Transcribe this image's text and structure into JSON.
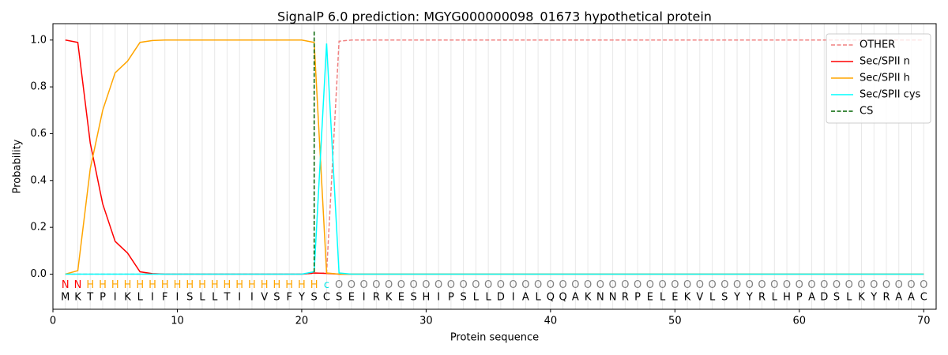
{
  "chart_data": {
    "type": "line",
    "title": "SignalP 6.0 prediction: MGYG000000098_01673 hypothetical protein",
    "xlabel": "Protein sequence",
    "ylabel": "Probability",
    "xlim": [
      0,
      71
    ],
    "ylim": [
      -0.15,
      1.07
    ],
    "xticks": [
      0,
      10,
      20,
      30,
      40,
      50,
      60,
      70
    ],
    "yticks": [
      {
        "value": 0,
        "label": "0.0"
      },
      {
        "value": 0.2,
        "label": "0.2"
      },
      {
        "value": 0.4,
        "label": "0.4"
      },
      {
        "value": 0.6,
        "label": "0.6"
      },
      {
        "value": 0.8,
        "label": "0.8"
      },
      {
        "value": 1.0,
        "label": "1.0"
      }
    ],
    "legend": "upper right",
    "x": [
      1,
      2,
      3,
      4,
      5,
      6,
      7,
      8,
      9,
      10,
      11,
      12,
      13,
      14,
      15,
      16,
      17,
      18,
      19,
      20,
      21,
      22,
      23,
      24,
      25,
      26,
      27,
      28,
      29,
      30,
      31,
      32,
      33,
      34,
      35,
      36,
      37,
      38,
      39,
      40,
      41,
      42,
      43,
      44,
      45,
      46,
      47,
      48,
      49,
      50,
      51,
      52,
      53,
      54,
      55,
      56,
      57,
      58,
      59,
      60,
      61,
      62,
      63,
      64,
      65,
      66,
      67,
      68,
      69,
      70
    ],
    "sequence": [
      "M",
      "K",
      "T",
      "P",
      "I",
      "K",
      "L",
      "I",
      "F",
      "I",
      "S",
      "L",
      "L",
      "T",
      "I",
      "I",
      "V",
      "S",
      "F",
      "Y",
      "S",
      "C",
      "S",
      "E",
      "I",
      "R",
      "K",
      "E",
      "S",
      "H",
      "I",
      "P",
      "S",
      "L",
      "L",
      "D",
      "I",
      "A",
      "L",
      "Q",
      "Q",
      "A",
      "K",
      "N",
      "N",
      "R",
      "P",
      "E",
      "L",
      "E",
      "K",
      "V",
      "L",
      "S",
      "Y",
      "Y",
      "R",
      "L",
      "H",
      "P",
      "A",
      "D",
      "S",
      "L",
      "K",
      "Y",
      "R",
      "A",
      "A",
      "C"
    ],
    "regions": [
      "N",
      "N",
      "H",
      "H",
      "H",
      "H",
      "H",
      "H",
      "H",
      "H",
      "H",
      "H",
      "H",
      "H",
      "H",
      "H",
      "H",
      "H",
      "H",
      "H",
      "H",
      "c",
      "O",
      "O",
      "O",
      "O",
      "O",
      "O",
      "O",
      "O",
      "O",
      "O",
      "O",
      "O",
      "O",
      "O",
      "O",
      "O",
      "O",
      "O",
      "O",
      "O",
      "O",
      "O",
      "O",
      "O",
      "O",
      "O",
      "O",
      "O",
      "O",
      "O",
      "O",
      "O",
      "O",
      "O",
      "O",
      "O",
      "O",
      "O",
      "O",
      "O",
      "O",
      "O",
      "O",
      "O",
      "O",
      "O",
      "O",
      "O"
    ],
    "region_colors": {
      "N": "#ff0000",
      "H": "#ffa500",
      "c": "#00e5e5",
      "O": "#808080"
    },
    "series": [
      {
        "name": "OTHER",
        "color": "#f08080",
        "dashed": true,
        "values": [
          0,
          0,
          0,
          0,
          0,
          0,
          0,
          0,
          0,
          0,
          0,
          0,
          0,
          0,
          0,
          0,
          0,
          0,
          0,
          0,
          0.003,
          0.005,
          0.995,
          1,
          1,
          1,
          1,
          1,
          1,
          1,
          1,
          1,
          1,
          1,
          1,
          1,
          1,
          1,
          1,
          1,
          1,
          1,
          1,
          1,
          1,
          1,
          1,
          1,
          1,
          1,
          1,
          1,
          1,
          1,
          1,
          1,
          1,
          1,
          1,
          1,
          1,
          1,
          1,
          1,
          1,
          1,
          1,
          1,
          1,
          1
        ]
      },
      {
        "name": "Sec/SPII n",
        "color": "#ff0000",
        "values": [
          1.0,
          0.99,
          0.56,
          0.3,
          0.14,
          0.09,
          0.01,
          0.002,
          0,
          0,
          0,
          0,
          0,
          0,
          0,
          0,
          0,
          0,
          0,
          0,
          0.005,
          0.003,
          0,
          0,
          0,
          0,
          0,
          0,
          0,
          0,
          0,
          0,
          0,
          0,
          0,
          0,
          0,
          0,
          0,
          0,
          0,
          0,
          0,
          0,
          0,
          0,
          0,
          0,
          0,
          0,
          0,
          0,
          0,
          0,
          0,
          0,
          0,
          0,
          0,
          0,
          0,
          0,
          0,
          0,
          0,
          0,
          0,
          0,
          0,
          0
        ]
      },
      {
        "name": "Sec/SPII h",
        "color": "#ffa500",
        "values": [
          0,
          0.015,
          0.45,
          0.7,
          0.86,
          0.91,
          0.99,
          0.998,
          1,
          1,
          1,
          1,
          1,
          1,
          1,
          1,
          1,
          1,
          1,
          1,
          0.99,
          0.005,
          0,
          0,
          0,
          0,
          0,
          0,
          0,
          0,
          0,
          0,
          0,
          0,
          0,
          0,
          0,
          0,
          0,
          0,
          0,
          0,
          0,
          0,
          0,
          0,
          0,
          0,
          0,
          0,
          0,
          0,
          0,
          0,
          0,
          0,
          0,
          0,
          0,
          0,
          0,
          0,
          0,
          0,
          0,
          0,
          0,
          0,
          0,
          0
        ]
      },
      {
        "name": "Sec/SPII cys",
        "color": "#00ffff",
        "values": [
          0,
          0,
          0,
          0,
          0,
          0,
          0,
          0,
          0,
          0,
          0,
          0,
          0,
          0,
          0,
          0,
          0,
          0,
          0,
          0,
          0.01,
          0.985,
          0.005,
          0,
          0,
          0,
          0,
          0,
          0,
          0,
          0,
          0,
          0,
          0,
          0,
          0,
          0,
          0,
          0,
          0,
          0,
          0,
          0,
          0,
          0,
          0,
          0,
          0,
          0,
          0,
          0,
          0,
          0,
          0,
          0,
          0,
          0,
          0,
          0,
          0,
          0,
          0,
          0,
          0,
          0,
          0,
          0,
          0,
          0,
          0
        ]
      }
    ],
    "cs": {
      "name": "CS",
      "x": 21,
      "color": "#006400"
    }
  }
}
